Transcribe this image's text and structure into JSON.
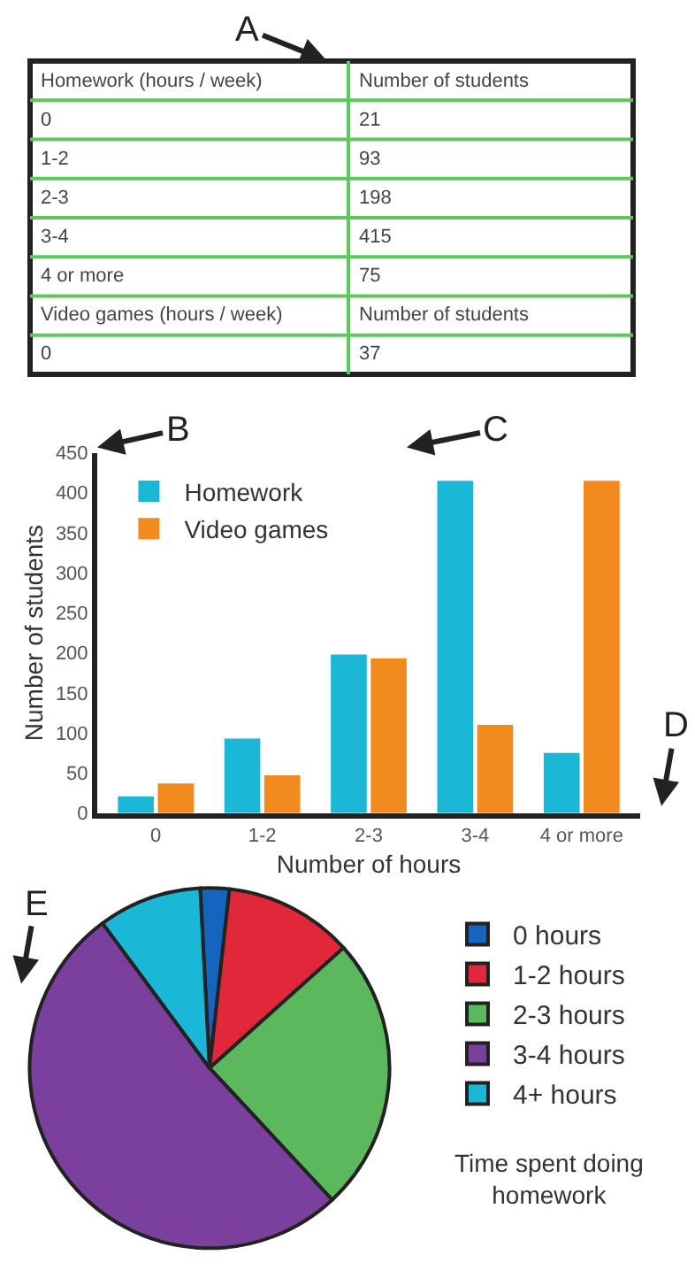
{
  "chart_data": [
    {
      "type": "other",
      "annotations": [
        "A",
        "Homework (hours / week)",
        "Number of students",
        "0",
        "21",
        "1-2",
        "93",
        "2-3",
        "198",
        "3-4",
        "415",
        "4 or more",
        "75",
        "Video games (hours / week)",
        "Number of students",
        "0",
        "37"
      ]
    },
    {
      "type": "bar",
      "categories": [
        "0",
        "1-2",
        "2-3",
        "3-4",
        "4 or more"
      ],
      "series": [
        {
          "name": "Homework",
          "color": "#1ab8d6",
          "values": [
            21,
            93,
            198,
            415,
            75
          ]
        },
        {
          "name": "Video games",
          "color": "#f28a1e",
          "values": [
            37,
            47,
            193,
            110,
            415
          ]
        }
      ],
      "xlabel": "Number of hours",
      "ylabel": "Number of students",
      "ylim": [
        0,
        450
      ],
      "yticks": [
        0,
        50,
        100,
        150,
        200,
        250,
        300,
        350,
        400,
        450
      ],
      "legend": "top left",
      "annotations": [
        "B",
        "C",
        "D"
      ]
    },
    {
      "type": "pie",
      "categories": [
        "0 hours",
        "1-2 hours",
        "2-3 hours",
        "3-4 hours",
        "4+ hours"
      ],
      "values": [
        2.6,
        11.6,
        24.7,
        51.8,
        9.3
      ],
      "colors": [
        "#1565c0",
        "#e0283a",
        "#5cb85c",
        "#7b3f9e",
        "#1ab8d6"
      ],
      "legend": "right",
      "title": "Time spent doing homework",
      "annotations": [
        "E"
      ]
    }
  ]
}
